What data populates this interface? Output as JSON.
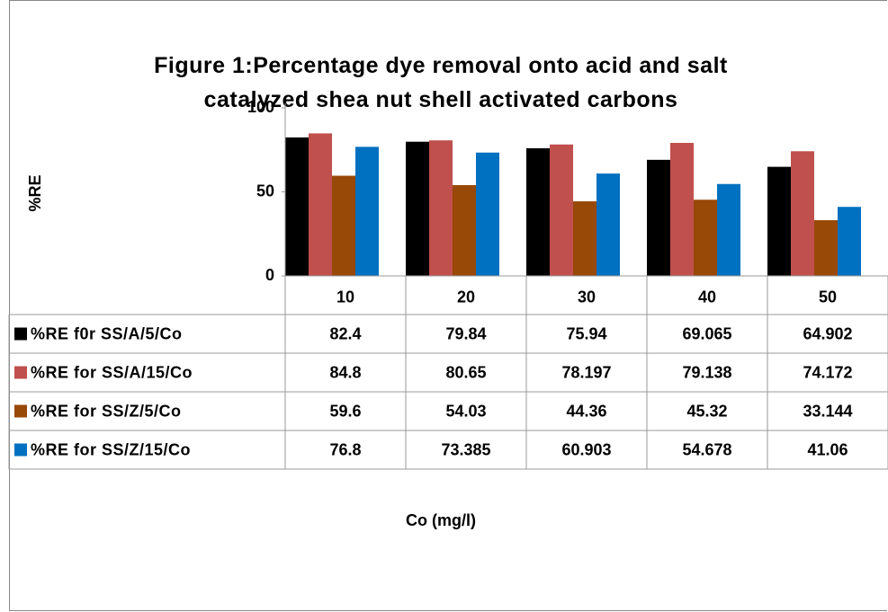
{
  "chart_data": {
    "type": "bar",
    "title": "Figure 1:Percentage dye removal onto acid and salt catalyzed  shea nut shell activated carbons",
    "y_label": "%RE",
    "x_label": "Co (mg/l)",
    "categories": [
      "10",
      "20",
      "30",
      "40",
      "50"
    ],
    "series": [
      {
        "name": "%RE f0r SS/A/5/Co",
        "color": "#000000",
        "values": [
          82.4,
          79.84,
          75.94,
          69.065,
          64.902
        ]
      },
      {
        "name": "%RE for SS/A/15/Co",
        "color": "#c0504d",
        "values": [
          84.8,
          80.65,
          78.197,
          79.138,
          74.172
        ]
      },
      {
        "name": "%RE for SS/Z/5/Co",
        "color": "#984807",
        "values": [
          59.6,
          54.03,
          44.36,
          45.32,
          33.144
        ]
      },
      {
        "name": "%RE for SS/Z/15/Co",
        "color": "#0070c0",
        "values": [
          76.8,
          73.385,
          60.903,
          54.678,
          41.06
        ]
      }
    ],
    "ylim": [
      0,
      100
    ],
    "yticks": [
      0,
      50,
      100
    ]
  }
}
